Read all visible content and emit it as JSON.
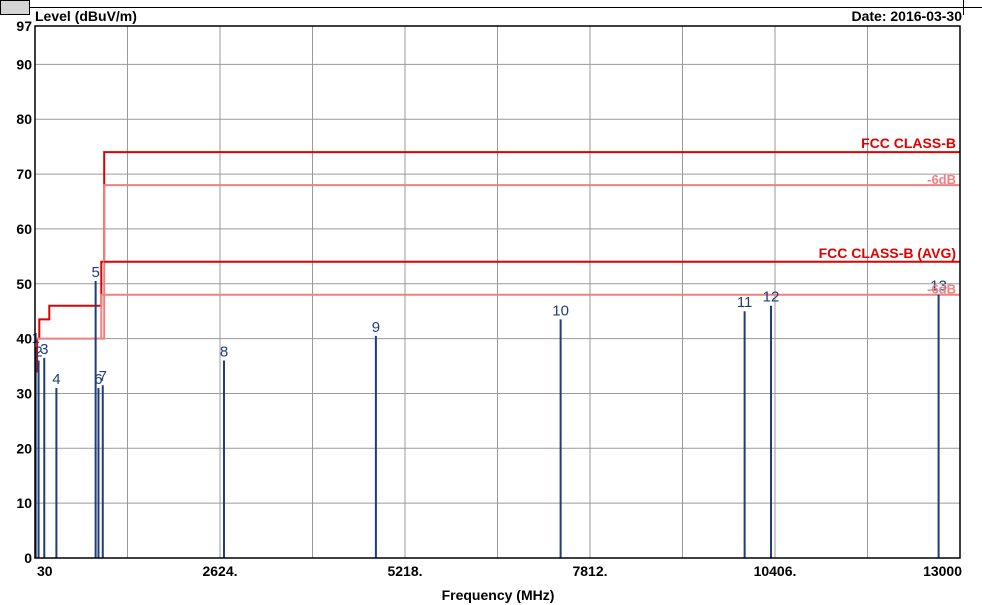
{
  "chart_data": {
    "type": "spectrum",
    "y_label": "Level (dBuV/m)",
    "x_label": "Frequency (MHz)",
    "date": "Date: 2016-03-30",
    "y_min": 0,
    "y_max": 97,
    "y_ticks": [
      "0",
      "10",
      "20",
      "30",
      "40",
      "50",
      "60",
      "70",
      "80",
      "90",
      "97"
    ],
    "x_min": 30,
    "x_max": 13000,
    "x_ticks": [
      {
        "value": 30,
        "label": "30"
      },
      {
        "value": 2624,
        "label": "2624."
      },
      {
        "value": 5218,
        "label": "5218."
      },
      {
        "value": 7812,
        "label": "7812."
      },
      {
        "value": 10406,
        "label": "10406."
      },
      {
        "value": 13000,
        "label": "13000"
      }
    ],
    "limits": [
      {
        "name": "FCC CLASS-B",
        "color": "#e00000",
        "points": [
          [
            30,
            34
          ],
          [
            60,
            34
          ],
          [
            60,
            40
          ],
          [
            90,
            40
          ],
          [
            90,
            43.5
          ],
          [
            230,
            43.5
          ],
          [
            230,
            46
          ],
          [
            960,
            46
          ],
          [
            960,
            54
          ],
          [
            1000,
            54
          ],
          [
            1000,
            74
          ],
          [
            13000,
            74
          ]
        ]
      },
      {
        "name": "-6dB",
        "color": "#f08080",
        "points": [
          [
            960,
            40
          ],
          [
            1000,
            40
          ],
          [
            1000,
            68
          ],
          [
            13000,
            68
          ]
        ]
      },
      {
        "name": "FCC CLASS-B (AVG)",
        "color": "#e00000",
        "points": [
          [
            1000,
            54
          ],
          [
            13000,
            54
          ]
        ]
      },
      {
        "name": "-6dB",
        "color": "#f08080",
        "points": [
          [
            30,
            40
          ],
          [
            960,
            40
          ],
          [
            960,
            48
          ],
          [
            13000,
            48
          ]
        ]
      }
    ],
    "markers": [
      {
        "label": "1",
        "freq": 40,
        "level": 38.5
      },
      {
        "label": "2",
        "freq": 80,
        "level": 36
      },
      {
        "label": "3",
        "freq": 160,
        "level": 36.5
      },
      {
        "label": "4",
        "freq": 330,
        "level": 31
      },
      {
        "label": "5",
        "freq": 880,
        "level": 50.5
      },
      {
        "label": "6",
        "freq": 920,
        "level": 31
      },
      {
        "label": "7",
        "freq": 980,
        "level": 31.5
      },
      {
        "label": "8",
        "freq": 2680,
        "level": 36
      },
      {
        "label": "9",
        "freq": 4810,
        "level": 40.5
      },
      {
        "label": "10",
        "freq": 7400,
        "level": 43.5
      },
      {
        "label": "11",
        "freq": 9980,
        "level": 45
      },
      {
        "label": "12",
        "freq": 10350,
        "level": 46
      },
      {
        "label": "13",
        "freq": 12700,
        "level": 48
      }
    ]
  }
}
